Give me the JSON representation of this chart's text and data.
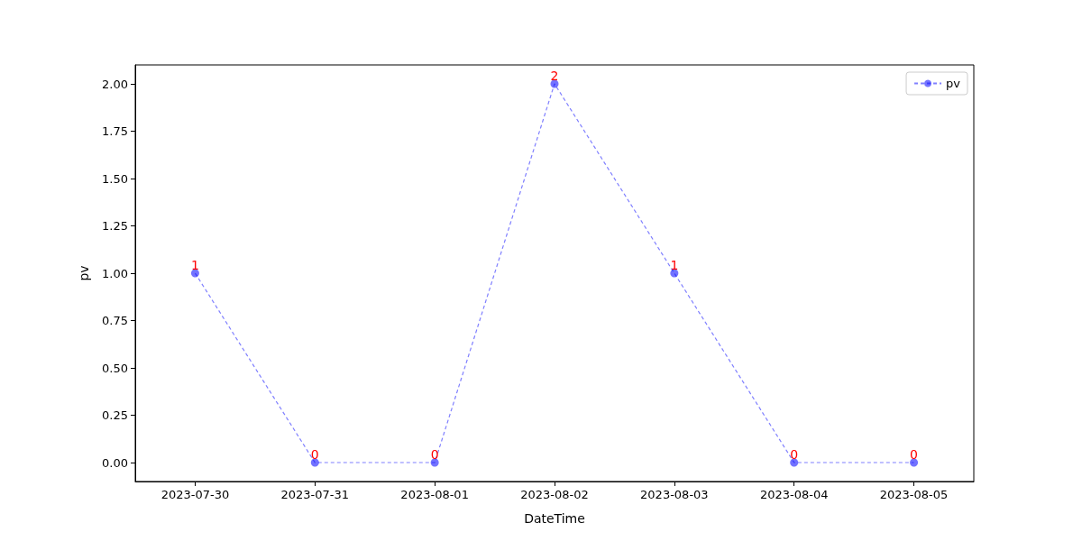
{
  "chart_data": {
    "type": "line",
    "xlabel": "DateTime",
    "ylabel": "pv",
    "categories": [
      "2023-07-30",
      "2023-07-31",
      "2023-08-01",
      "2023-08-02",
      "2023-08-03",
      "2023-08-04",
      "2023-08-05"
    ],
    "series": [
      {
        "name": "pv",
        "color": "#0000ff",
        "values": [
          1,
          0,
          0,
          2,
          1,
          0,
          0
        ]
      }
    ],
    "ylim": [
      -0.1,
      2.1
    ],
    "yticks": [
      {
        "value": 0,
        "label": "0.00"
      },
      {
        "value": 0.25,
        "label": "0.25"
      },
      {
        "value": 0.5,
        "label": "0.50"
      },
      {
        "value": 0.75,
        "label": "0.75"
      },
      {
        "value": 1,
        "label": "1.00"
      },
      {
        "value": 1.25,
        "label": "1.25"
      },
      {
        "value": 1.5,
        "label": "1.50"
      },
      {
        "value": 1.75,
        "label": "1.75"
      },
      {
        "value": 2,
        "label": "2.00"
      }
    ],
    "data_labels": true,
    "legend": "top right",
    "marker": "circle",
    "line_style": "dashed",
    "grid": false
  }
}
